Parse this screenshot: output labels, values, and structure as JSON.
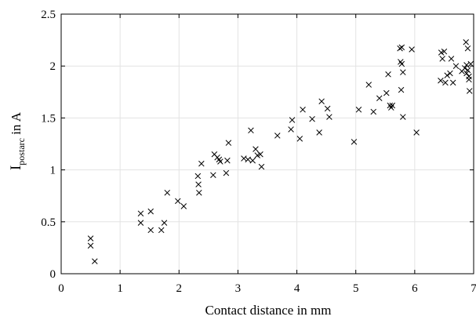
{
  "chart_data": {
    "type": "scatter",
    "xlabel": "Contact distance in mm",
    "ylabel": {
      "main": "I",
      "subscript": "postarc",
      "suffix": " in A"
    },
    "xlim": [
      0,
      7
    ],
    "ylim": [
      0,
      2.5
    ],
    "xticks": [
      0,
      1,
      2,
      3,
      4,
      5,
      6,
      7
    ],
    "yticks": [
      0,
      0.5,
      1,
      1.5,
      2,
      2.5
    ],
    "xtick_labels": [
      "0",
      "1",
      "2",
      "3",
      "4",
      "5",
      "6",
      "7"
    ],
    "ytick_labels": [
      "0",
      "0.5",
      "1",
      "1.5",
      "2",
      "2.5"
    ],
    "grid": true,
    "marker": "x",
    "series": [
      {
        "x": [
          0.5,
          0.5,
          0.57,
          1.35,
          1.35,
          1.52,
          1.52,
          1.7,
          1.75,
          1.8,
          1.98,
          2.08,
          2.32,
          2.33,
          2.34,
          2.38,
          2.58,
          2.6,
          2.65,
          2.68,
          2.7,
          2.8,
          2.82,
          2.84,
          3.1,
          3.17,
          3.22,
          3.25,
          3.3,
          3.33,
          3.38,
          3.4,
          3.67,
          3.9,
          3.92,
          4.05,
          4.1,
          4.26,
          4.38,
          4.42,
          4.52,
          4.55,
          4.97,
          5.05,
          5.22,
          5.3,
          5.4,
          5.52,
          5.55,
          5.58,
          5.6,
          5.62,
          5.75,
          5.76,
          5.77,
          5.78,
          5.78,
          5.8,
          5.8,
          5.95,
          6.03,
          6.44,
          6.45,
          6.47,
          6.5,
          6.52,
          6.55,
          6.6,
          6.62,
          6.65,
          6.7,
          6.8,
          6.85,
          6.87,
          6.88,
          6.88,
          6.9,
          6.9,
          6.92,
          6.92,
          6.93,
          6.95
        ]
      },
      {
        "y": [
          0.34,
          0.27,
          0.12,
          0.58,
          0.49,
          0.6,
          0.42,
          0.42,
          0.49,
          0.78,
          0.7,
          0.65,
          0.94,
          0.86,
          0.78,
          1.06,
          0.95,
          1.15,
          1.12,
          1.1,
          1.08,
          0.97,
          1.09,
          1.26,
          1.11,
          1.1,
          1.38,
          1.09,
          1.2,
          1.14,
          1.15,
          1.03,
          1.33,
          1.39,
          1.48,
          1.3,
          1.58,
          1.49,
          1.36,
          1.66,
          1.59,
          1.51,
          1.27,
          1.58,
          1.82,
          1.56,
          1.69,
          1.74,
          1.92,
          1.62,
          1.6,
          1.62,
          2.17,
          2.04,
          1.77,
          2.18,
          2.02,
          1.94,
          1.51,
          2.16,
          1.36,
          1.86,
          2.13,
          2.07,
          2.14,
          1.84,
          1.91,
          1.93,
          2.07,
          1.84,
          2.0,
          1.95,
          1.98,
          2.23,
          1.93,
          2.01,
          2.17,
          1.96,
          1.87,
          1.9,
          1.76,
          2.02
        ]
      }
    ]
  },
  "colors": {
    "marker": "#000000",
    "grid": "#e3e3e3",
    "axis": "#000000"
  }
}
